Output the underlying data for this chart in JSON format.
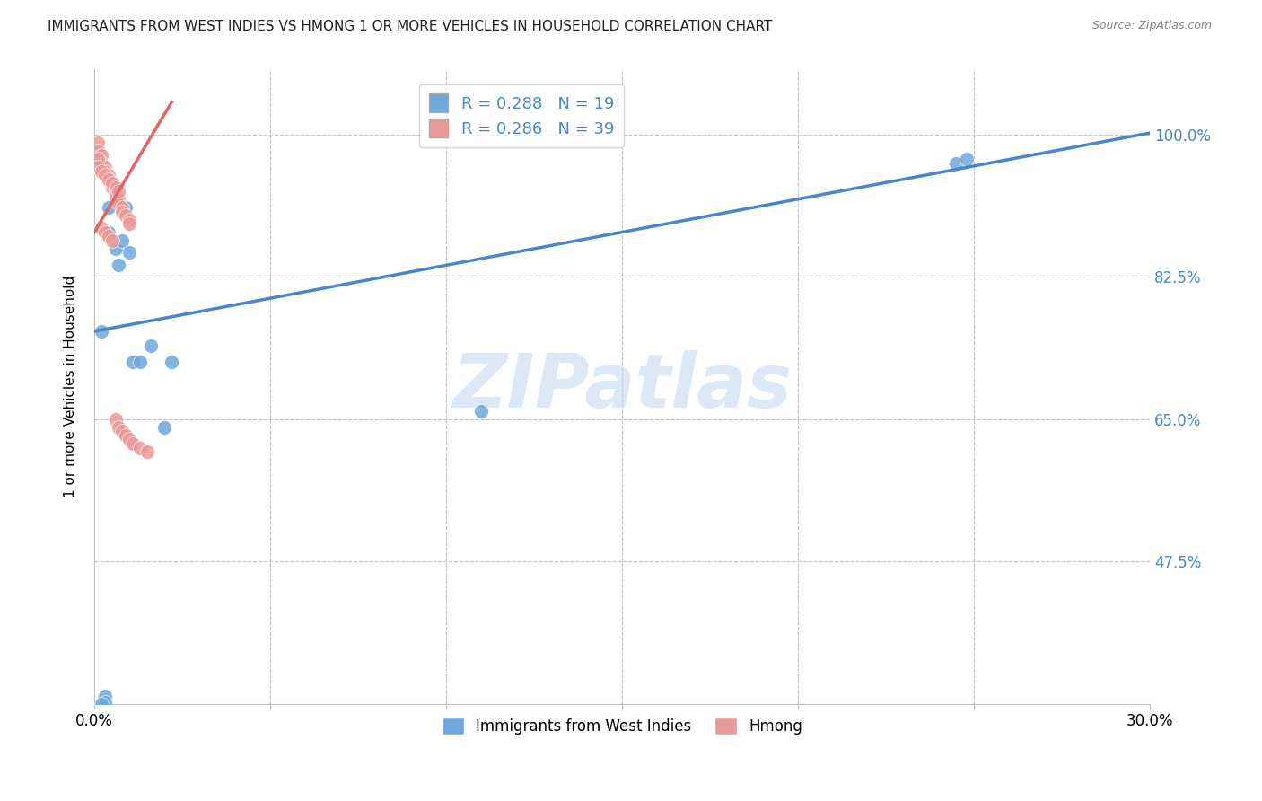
{
  "title": "IMMIGRANTS FROM WEST INDIES VS HMONG 1 OR MORE VEHICLES IN HOUSEHOLD CORRELATION CHART",
  "source": "Source: ZipAtlas.com",
  "ylabel": "1 or more Vehicles in Household",
  "xmin": 0.0,
  "xmax": 0.3,
  "ymin": 0.3,
  "ymax": 1.08,
  "ytick_positions": [
    0.475,
    0.65,
    0.825,
    1.0
  ],
  "ytick_labels": [
    "47.5%",
    "65.0%",
    "82.5%",
    "100.0%"
  ],
  "xtick_positions": [
    0.0,
    0.05,
    0.1,
    0.15,
    0.2,
    0.25,
    0.3
  ],
  "xtick_labels": [
    "0.0%",
    "",
    "",
    "",
    "",
    "",
    "30.0%"
  ],
  "watermark": "ZIPatlas",
  "legend_blue_R": "0.288",
  "legend_blue_N": "19",
  "legend_pink_R": "0.286",
  "legend_pink_N": "39",
  "blue_scatter_x": [
    0.002,
    0.004,
    0.004,
    0.006,
    0.007,
    0.008,
    0.009,
    0.01,
    0.011,
    0.013,
    0.016,
    0.02,
    0.022,
    0.003,
    0.003,
    0.11,
    0.245,
    0.248,
    0.002
  ],
  "blue_scatter_y": [
    0.758,
    0.88,
    0.91,
    0.86,
    0.84,
    0.87,
    0.91,
    0.855,
    0.72,
    0.72,
    0.74,
    0.64,
    0.72,
    0.31,
    0.302,
    0.66,
    0.965,
    0.97,
    0.3
  ],
  "pink_scatter_x": [
    0.001,
    0.001,
    0.002,
    0.002,
    0.003,
    0.003,
    0.004,
    0.004,
    0.005,
    0.005,
    0.006,
    0.006,
    0.007,
    0.007,
    0.008,
    0.008,
    0.009,
    0.01,
    0.01,
    0.002,
    0.003,
    0.004,
    0.005,
    0.006,
    0.007,
    0.008,
    0.009,
    0.01,
    0.011,
    0.013,
    0.015,
    0.001,
    0.001,
    0.002,
    0.003,
    0.004,
    0.005,
    0.006,
    0.007
  ],
  "pink_scatter_y": [
    0.99,
    0.98,
    0.975,
    0.965,
    0.96,
    0.955,
    0.95,
    0.945,
    0.94,
    0.935,
    0.93,
    0.925,
    0.92,
    0.915,
    0.91,
    0.905,
    0.9,
    0.895,
    0.89,
    0.885,
    0.88,
    0.875,
    0.87,
    0.65,
    0.64,
    0.635,
    0.63,
    0.625,
    0.62,
    0.615,
    0.61,
    0.97,
    0.96,
    0.955,
    0.95,
    0.945,
    0.94,
    0.935,
    0.93
  ],
  "blue_line_x": [
    0.0,
    0.3
  ],
  "blue_line_y": [
    0.758,
    1.002
  ],
  "pink_line_x": [
    0.0,
    0.022
  ],
  "pink_line_y": [
    0.88,
    1.04
  ],
  "blue_color": "#6fa8dc",
  "pink_color": "#ea9999",
  "blue_line_color": "#4a86c8",
  "pink_line_color": "#e06666",
  "grid_color": "#c0c0c0",
  "background_color": "#ffffff",
  "title_fontsize": 11,
  "ylabel_fontsize": 11,
  "watermark_color": "#c6d9f0",
  "watermark_fontsize": 60
}
